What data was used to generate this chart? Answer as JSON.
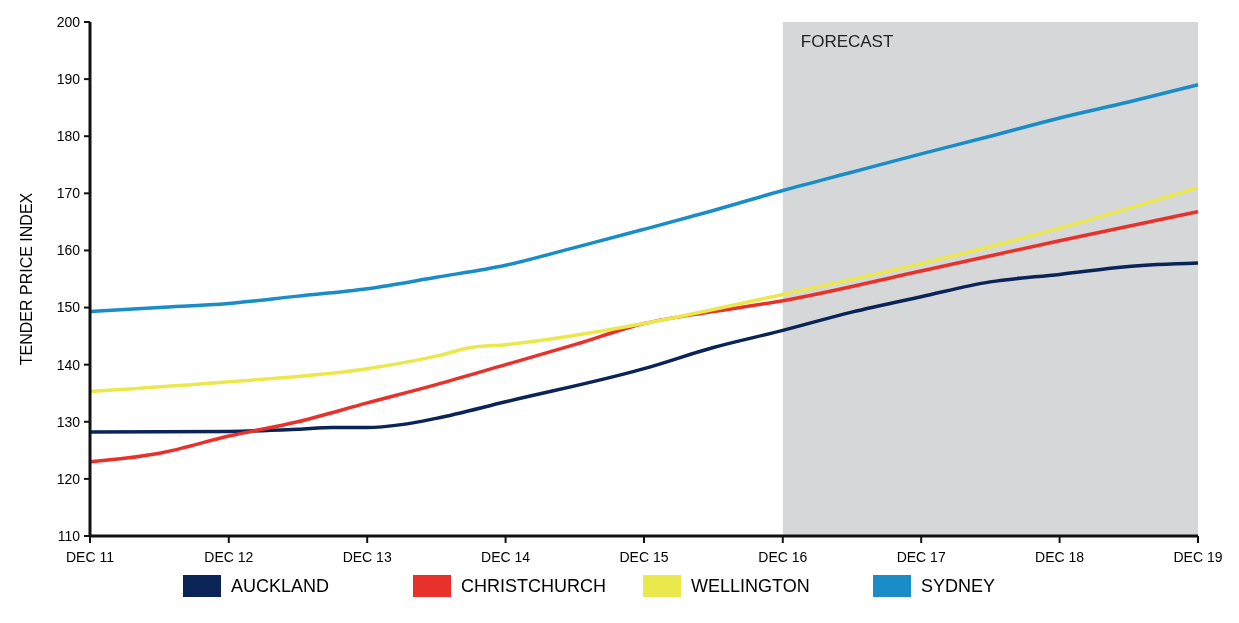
{
  "chart_data": {
    "type": "line",
    "ylabel": "TENDER PRICE INDEX",
    "xlim": [
      "2011-12",
      "2019-12"
    ],
    "xticks": [
      {
        "value": "2011-12",
        "label": "DEC 11"
      },
      {
        "value": "2012-12",
        "label": "DEC 12"
      },
      {
        "value": "2013-12",
        "label": "DEC 13"
      },
      {
        "value": "2014-12",
        "label": "DEC 14"
      },
      {
        "value": "2015-12",
        "label": "DEC 15"
      },
      {
        "value": "2016-12",
        "label": "DEC 16"
      },
      {
        "value": "2017-12",
        "label": "DEC 17"
      },
      {
        "value": "2018-12",
        "label": "DEC 18"
      },
      {
        "value": "2019-12",
        "label": "DEC 19"
      }
    ],
    "ylim": [
      110,
      200
    ],
    "yticks": [
      110,
      120,
      130,
      140,
      150,
      160,
      170,
      180,
      190,
      200
    ],
    "grid": false,
    "legend": "bottom",
    "marker": "none",
    "line_style": "solid",
    "bands": [
      {
        "axis": "x",
        "from": "2016-12",
        "to": "2019-12",
        "label": "FORECAST",
        "color": "#d6d7d9"
      }
    ],
    "series": [
      {
        "name": "AUCKLAND",
        "color": "#0a2458",
        "x": [
          "2011-12",
          "2012-12",
          "2013-06",
          "2013-09",
          "2013-12",
          "2014-03",
          "2014-06",
          "2014-12",
          "2015-12",
          "2016-06",
          "2016-12",
          "2017-06",
          "2017-12",
          "2018-06",
          "2018-12",
          "2019-06",
          "2019-12"
        ],
        "values": [
          128.2,
          128.3,
          128.7,
          129,
          129,
          129.5,
          130.6,
          133.5,
          139.3,
          143,
          146,
          149.2,
          151.9,
          154.5,
          155.8,
          157.2,
          157.8
        ]
      },
      {
        "name": "CHRISTCHURCH",
        "color": "#e8312a",
        "x": [
          "2011-12",
          "2012-03",
          "2012-06",
          "2012-12",
          "2013-06",
          "2013-12",
          "2014-06",
          "2014-12",
          "2015-06",
          "2015-12",
          "2016-06",
          "2016-12",
          "2017-12",
          "2018-12",
          "2019-12"
        ],
        "values": [
          123,
          123.6,
          124.5,
          127.5,
          130,
          133.3,
          136.5,
          140,
          143.5,
          147.2,
          149.3,
          151.2,
          156.4,
          161.7,
          166.8
        ]
      },
      {
        "name": "WELLINGTON",
        "color": "#ebe84d",
        "x": [
          "2011-12",
          "2012-12",
          "2013-12",
          "2014-06",
          "2014-09",
          "2014-12",
          "2015-12",
          "2016-12",
          "2017-12",
          "2018-12",
          "2019-12"
        ],
        "values": [
          135.3,
          137,
          139.3,
          141.5,
          143,
          143.5,
          147.2,
          152.3,
          157.7,
          163.9,
          171
        ]
      },
      {
        "name": "SYDNEY",
        "color": "#1a8cc7",
        "x": [
          "2011-12",
          "2012-06",
          "2012-12",
          "2013-06",
          "2013-12",
          "2014-06",
          "2014-12",
          "2015-06",
          "2015-12",
          "2016-06",
          "2016-12",
          "2017-06",
          "2017-12",
          "2018-06",
          "2018-12",
          "2019-06",
          "2019-12"
        ],
        "values": [
          149.3,
          150,
          150.7,
          152,
          153.3,
          155.3,
          157.4,
          160.5,
          163.7,
          167,
          170.5,
          173.7,
          176.9,
          180,
          183.2,
          186,
          189
        ]
      }
    ]
  }
}
